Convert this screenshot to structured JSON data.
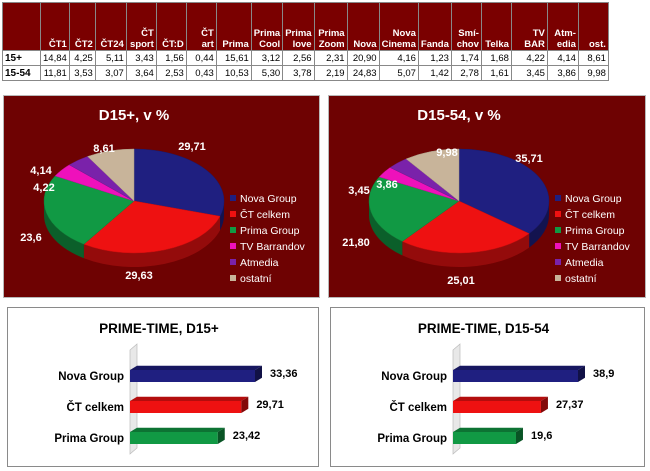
{
  "table": {
    "columns": [
      "ČT1",
      "ČT2",
      "ČT24",
      "ČT sport",
      "ČT:D",
      "ČT art",
      "Prima",
      "Prima Cool",
      "Prima love",
      "Prima Zoom",
      "Nova",
      "Nova Cinema",
      "Fanda",
      "Smí-chov",
      "Telka",
      "TV BAR",
      "Atm-edia",
      "ost."
    ],
    "rows": [
      {
        "label": "15+",
        "values": [
          "14,84",
          "4,25",
          "5,11",
          "3,43",
          "1,56",
          "0,44",
          "15,61",
          "3,12",
          "2,56",
          "2,31",
          "20,90",
          "4,16",
          "1,23",
          "1,74",
          "1,68",
          "4,22",
          "4,14",
          "8,61"
        ]
      },
      {
        "label": "15-54",
        "values": [
          "11,81",
          "3,53",
          "3,07",
          "3,64",
          "2,53",
          "0,43",
          "10,53",
          "5,30",
          "3,78",
          "2,19",
          "24,83",
          "5,07",
          "1,42",
          "2,78",
          "1,61",
          "3,45",
          "3,86",
          "9,98"
        ]
      }
    ]
  },
  "chart_data": [
    {
      "type": "pie",
      "title": "D15+, v %",
      "categories": [
        "Nova Group",
        "ČT celkem",
        "Prima Group",
        "TV Barrandov",
        "Atmedia",
        "ostatní"
      ],
      "values": [
        29.71,
        29.63,
        23.6,
        4.22,
        4.14,
        8.61
      ],
      "labels": [
        "29,71",
        "29,63",
        "23,6",
        "4,22",
        "4,14",
        "8,61"
      ],
      "colors": [
        "#1f1f80",
        "#ee1111",
        "#119944",
        "#ee11bb",
        "#7a22aa",
        "#c8b49a"
      ],
      "legend": "right"
    },
    {
      "type": "pie",
      "title": "D15-54, v %",
      "categories": [
        "Nova Group",
        "ČT celkem",
        "Prima Group",
        "TV Barrandov",
        "Atmedia",
        "ostatní"
      ],
      "values": [
        35.71,
        25.01,
        21.8,
        3.45,
        3.86,
        9.98
      ],
      "labels": [
        "35,71",
        "25,01",
        "21,80",
        "3,45",
        "3,86",
        "9,98"
      ],
      "colors": [
        "#1f1f80",
        "#ee1111",
        "#119944",
        "#ee11bb",
        "#7a22aa",
        "#c8b49a"
      ],
      "legend": "right"
    },
    {
      "type": "bar",
      "orientation": "horizontal",
      "title": "PRIME-TIME, D15+",
      "categories": [
        "Nova Group",
        "ČT celkem",
        "Prima Group"
      ],
      "values": [
        33.36,
        29.71,
        23.42
      ],
      "labels": [
        "33,36",
        "29,71",
        "23,42"
      ],
      "colors": [
        "#1f1f80",
        "#ee1111",
        "#119944"
      ]
    },
    {
      "type": "bar",
      "orientation": "horizontal",
      "title": "PRIME-TIME, D15-54",
      "categories": [
        "Nova Group",
        "ČT celkem",
        "Prima Group"
      ],
      "values": [
        38.9,
        27.37,
        19.6
      ],
      "labels": [
        "38,9",
        "27,37",
        "19,6"
      ],
      "colors": [
        "#1f1f80",
        "#ee1111",
        "#119944"
      ]
    }
  ]
}
